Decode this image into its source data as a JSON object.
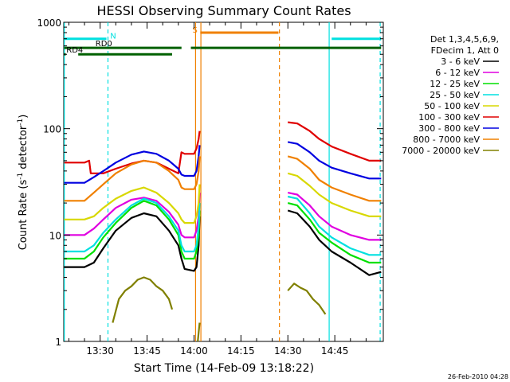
{
  "chart_data": {
    "type": "line",
    "title": "HESSI Observing Summary Count Rates",
    "xlabel": "Start Time (14-Feb-09 13:18:22)",
    "ylabel_main": "Count Rate (s",
    "ylabel_sup1": "-1",
    "ylabel_mid": " detector",
    "ylabel_sup2": "-1",
    "ylabel_end": ")",
    "yscale": "log",
    "ylim": [
      1,
      1000
    ],
    "xlim_minutes": [
      18.37,
      120.5
    ],
    "x_ticks": [
      {
        "minute": 30,
        "label": "13:30"
      },
      {
        "minute": 45,
        "label": "13:45"
      },
      {
        "minute": 60,
        "label": "14:00"
      },
      {
        "minute": 75,
        "label": "14:15"
      },
      {
        "minute": 90,
        "label": "14:30"
      },
      {
        "minute": 105,
        "label": "14:45"
      }
    ],
    "y_ticks": [
      {
        "value": 1,
        "label": "1"
      },
      {
        "value": 10,
        "label": "10"
      },
      {
        "value": 100,
        "label": "100"
      },
      {
        "value": 1000,
        "label": "1000"
      }
    ],
    "legend_header": [
      "Det 1,3,4,5,6,9,",
      "FDecim 1, Att 0"
    ],
    "series": [
      {
        "name": "3 - 6 keV",
        "color": "#000000",
        "segments": [
          [
            [
              18.5,
              5.0
            ],
            [
              25,
              5.0
            ],
            [
              28,
              5.5
            ],
            [
              31,
              7.5
            ],
            [
              35,
              11
            ],
            [
              40,
              14.5
            ],
            [
              44,
              16
            ],
            [
              48,
              15
            ],
            [
              52,
              11
            ],
            [
              55,
              8
            ],
            [
              56,
              6
            ],
            [
              57,
              4.8
            ],
            [
              60,
              4.6
            ],
            [
              60.8,
              5
            ],
            [
              61.5,
              8
            ],
            [
              61.8,
              15
            ]
          ],
          [
            [
              90,
              17
            ],
            [
              93,
              16
            ],
            [
              97,
              12
            ],
            [
              100,
              9
            ],
            [
              104,
              7
            ],
            [
              110,
              5.5
            ],
            [
              116,
              4.2
            ],
            [
              119.8,
              4.5
            ]
          ]
        ]
      },
      {
        "name": "6 - 12 keV",
        "color": "#e000e0",
        "segments": [
          [
            [
              18.5,
              10
            ],
            [
              25,
              10
            ],
            [
              28,
              11.5
            ],
            [
              31,
              14
            ],
            [
              35,
              18
            ],
            [
              40,
              21.5
            ],
            [
              44,
              22.5
            ],
            [
              48,
              21
            ],
            [
              52,
              16.5
            ],
            [
              55,
              12.5
            ],
            [
              56,
              10
            ],
            [
              57,
              9.5
            ],
            [
              60,
              9.5
            ],
            [
              60.8,
              11
            ],
            [
              61.5,
              15
            ],
            [
              61.8,
              25
            ]
          ],
          [
            [
              90,
              25
            ],
            [
              93,
              24
            ],
            [
              97,
              19
            ],
            [
              100,
              15
            ],
            [
              104,
              12
            ],
            [
              110,
              10
            ],
            [
              116,
              9
            ],
            [
              119.8,
              9
            ]
          ]
        ]
      },
      {
        "name": "12 - 25 keV",
        "color": "#00e000",
        "segments": [
          [
            [
              18.5,
              6
            ],
            [
              25,
              6
            ],
            [
              28,
              7
            ],
            [
              31,
              9.5
            ],
            [
              35,
              13
            ],
            [
              40,
              18
            ],
            [
              44,
              21
            ],
            [
              48,
              19
            ],
            [
              52,
              14
            ],
            [
              55,
              10
            ],
            [
              56,
              7
            ],
            [
              57,
              6
            ],
            [
              60,
              6
            ],
            [
              60.8,
              7
            ],
            [
              61.5,
              10
            ],
            [
              61.8,
              17
            ]
          ],
          [
            [
              90,
              20
            ],
            [
              93,
              19
            ],
            [
              97,
              14
            ],
            [
              100,
              10.5
            ],
            [
              104,
              8.5
            ],
            [
              110,
              6.5
            ],
            [
              116,
              5.5
            ],
            [
              119.8,
              5.5
            ]
          ]
        ]
      },
      {
        "name": "25 - 50 keV",
        "color": "#00e0e0",
        "segments": [
          [
            [
              18.5,
              7
            ],
            [
              25,
              7
            ],
            [
              28,
              8
            ],
            [
              31,
              10.5
            ],
            [
              35,
              14
            ],
            [
              40,
              19
            ],
            [
              44,
              22
            ],
            [
              48,
              20
            ],
            [
              52,
              15
            ],
            [
              55,
              11
            ],
            [
              56,
              8
            ],
            [
              57,
              7
            ],
            [
              60,
              7
            ],
            [
              60.8,
              8
            ],
            [
              61.5,
              12
            ],
            [
              61.8,
              20
            ]
          ],
          [
            [
              90,
              23
            ],
            [
              93,
              22
            ],
            [
              97,
              16
            ],
            [
              100,
              12
            ],
            [
              104,
              9.5
            ],
            [
              110,
              7.5
            ],
            [
              116,
              6.5
            ],
            [
              119.8,
              6.5
            ]
          ]
        ]
      },
      {
        "name": "50 - 100 keV",
        "color": "#d8d800",
        "segments": [
          [
            [
              18.5,
              14
            ],
            [
              25,
              14
            ],
            [
              28,
              15
            ],
            [
              31,
              18
            ],
            [
              35,
              22
            ],
            [
              40,
              26
            ],
            [
              44,
              28
            ],
            [
              48,
              25
            ],
            [
              52,
              20
            ],
            [
              55,
              16
            ],
            [
              56,
              14
            ],
            [
              57,
              13
            ],
            [
              60,
              13
            ],
            [
              60.8,
              15
            ],
            [
              61.5,
              20
            ],
            [
              61.8,
              30
            ]
          ],
          [
            [
              90,
              38
            ],
            [
              93,
              36
            ],
            [
              97,
              29
            ],
            [
              100,
              24
            ],
            [
              104,
              20
            ],
            [
              110,
              17
            ],
            [
              116,
              15
            ],
            [
              119.8,
              15
            ]
          ]
        ]
      },
      {
        "name": "100 - 300 keV",
        "color": "#e00000",
        "segments": [
          [
            [
              18.5,
              48
            ],
            [
              25,
              48
            ],
            [
              26.5,
              50
            ],
            [
              27,
              38
            ],
            [
              31,
              38
            ],
            [
              35,
              42
            ],
            [
              40,
              47
            ],
            [
              44,
              50
            ],
            [
              48,
              48
            ],
            [
              52,
              42
            ],
            [
              55,
              38
            ],
            [
              56,
              60
            ],
            [
              57,
              58
            ],
            [
              60,
              58
            ],
            [
              60.8,
              65
            ],
            [
              61.5,
              80
            ],
            [
              61.8,
              95
            ]
          ],
          [
            [
              90,
              115
            ],
            [
              93,
              112
            ],
            [
              97,
              95
            ],
            [
              100,
              80
            ],
            [
              104,
              68
            ],
            [
              110,
              58
            ],
            [
              116,
              50
            ],
            [
              119.8,
              50
            ]
          ]
        ]
      },
      {
        "name": "300 - 800 keV",
        "color": "#0000e0",
        "segments": [
          [
            [
              18.5,
              31
            ],
            [
              25,
              31
            ],
            [
              28,
              35
            ],
            [
              31,
              40
            ],
            [
              35,
              48
            ],
            [
              40,
              57
            ],
            [
              44,
              61
            ],
            [
              48,
              58
            ],
            [
              52,
              50
            ],
            [
              55,
              42
            ],
            [
              56,
              37
            ],
            [
              57,
              36
            ],
            [
              60,
              36
            ],
            [
              60.8,
              40
            ],
            [
              61.5,
              55
            ],
            [
              61.8,
              70
            ]
          ],
          [
            [
              90,
              75
            ],
            [
              93,
              72
            ],
            [
              97,
              60
            ],
            [
              100,
              50
            ],
            [
              104,
              43
            ],
            [
              110,
              38
            ],
            [
              116,
              34
            ],
            [
              119.8,
              34
            ]
          ]
        ]
      },
      {
        "name": "800 - 7000 keV",
        "color": "#f08000",
        "segments": [
          [
            [
              18.5,
              21
            ],
            [
              25,
              21
            ],
            [
              28,
              25
            ],
            [
              31,
              30
            ],
            [
              35,
              38
            ],
            [
              40,
              46
            ],
            [
              44,
              50
            ],
            [
              48,
              48
            ],
            [
              52,
              40
            ],
            [
              55,
              33
            ],
            [
              56,
              28
            ],
            [
              57,
              27
            ],
            [
              60,
              27
            ],
            [
              60.8,
              30
            ],
            [
              61.5,
              40
            ],
            [
              61.8,
              55
            ]
          ],
          [
            [
              90,
              55
            ],
            [
              93,
              52
            ],
            [
              97,
              42
            ],
            [
              100,
              33
            ],
            [
              104,
              28
            ],
            [
              110,
              24
            ],
            [
              116,
              21
            ],
            [
              119.8,
              21
            ]
          ]
        ]
      },
      {
        "name": "7000 - 20000 keV",
        "color": "#808000",
        "segments": [
          [
            [
              34,
              1.5
            ],
            [
              36,
              2.5
            ],
            [
              38,
              3
            ],
            [
              40,
              3.3
            ],
            [
              42,
              3.8
            ],
            [
              44,
              4
            ],
            [
              46,
              3.8
            ],
            [
              48,
              3.3
            ],
            [
              50,
              3
            ],
            [
              52,
              2.5
            ],
            [
              53,
              2
            ]
          ],
          [
            [
              61.2,
              1
            ],
            [
              61.8,
              1.5
            ]
          ],
          [
            [
              90,
              3
            ],
            [
              92,
              3.5
            ],
            [
              94,
              3.2
            ],
            [
              96,
              3
            ],
            [
              98,
              2.5
            ],
            [
              100,
              2.2
            ],
            [
              102,
              1.8
            ]
          ]
        ]
      }
    ],
    "status_bars": [
      {
        "name": "N",
        "color": "#00e0e0",
        "y_value": 700,
        "segments": [
          [
            18.5,
            32
          ],
          [
            104,
            119.8
          ]
        ],
        "label_minute": 33.2
      },
      {
        "name": "RD0",
        "color": "#006000",
        "y_value": 575,
        "segments": [
          [
            18.5,
            56
          ],
          [
            59,
            119.8
          ]
        ],
        "label_minute": 28.5
      },
      {
        "name": "RD4",
        "color": "#006000",
        "y_value": 500,
        "segments": [
          [
            18.5,
            19
          ],
          [
            23,
            53
          ]
        ],
        "label_minute": 19.2
      },
      {
        "name": "S",
        "color": "#f08000",
        "y_value": 800,
        "segments": [
          [
            62,
            87
          ]
        ],
        "label_minute": 59.5
      }
    ],
    "vertical_markers": [
      {
        "minute": 18.55,
        "color": "#00e0e0",
        "style": "solid"
      },
      {
        "minute": 32.5,
        "color": "#00e0e0",
        "style": "dashed"
      },
      {
        "minute": 103.2,
        "color": "#00e0e0",
        "style": "solid"
      },
      {
        "minute": 119.5,
        "color": "#00e0e0",
        "style": "dashed"
      },
      {
        "minute": 60.5,
        "color": "#f08000",
        "style": "solid"
      },
      {
        "minute": 62.2,
        "color": "#f08000",
        "style": "solid"
      },
      {
        "minute": 87.3,
        "color": "#f08000",
        "style": "dashed"
      }
    ]
  },
  "footer_timestamp": "26-Feb-2010 04:28"
}
